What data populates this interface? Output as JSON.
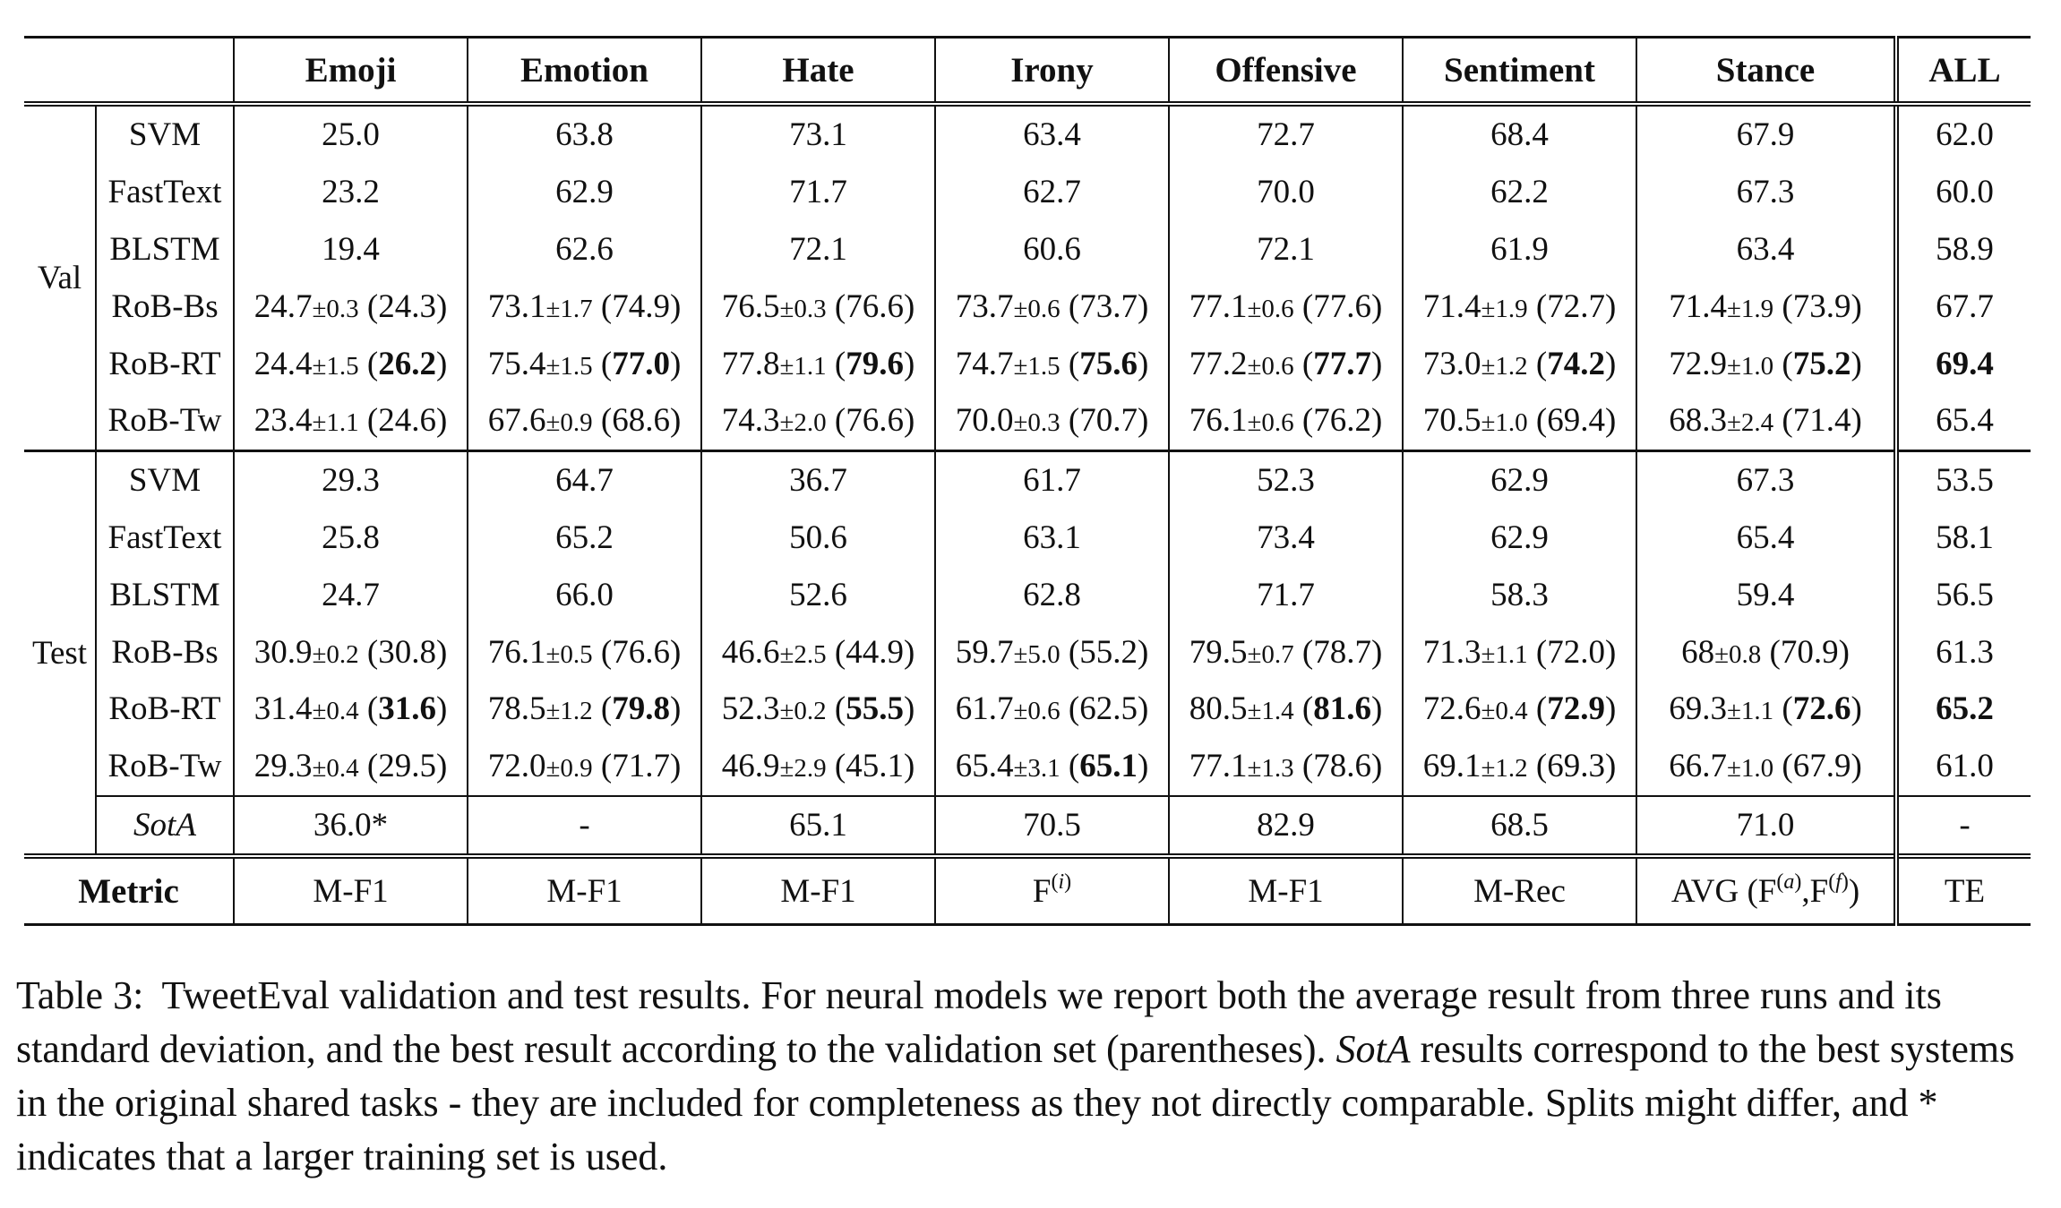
{
  "columns": [
    "Emoji",
    "Emotion",
    "Hate",
    "Irony",
    "Offensive",
    "Sentiment",
    "Stance",
    "ALL"
  ],
  "groups": [
    {
      "label": "Val",
      "rows": [
        {
          "model": "SVM",
          "cells": [
            {
              "v": "25.0"
            },
            {
              "v": "63.8"
            },
            {
              "v": "73.1"
            },
            {
              "v": "63.4"
            },
            {
              "v": "72.7"
            },
            {
              "v": "68.4"
            },
            {
              "v": "67.9"
            },
            {
              "v": "62.0"
            }
          ]
        },
        {
          "model": "FastText",
          "cells": [
            {
              "v": "23.2"
            },
            {
              "v": "62.9"
            },
            {
              "v": "71.7"
            },
            {
              "v": "62.7"
            },
            {
              "v": "70.0"
            },
            {
              "v": "62.2"
            },
            {
              "v": "67.3"
            },
            {
              "v": "60.0"
            }
          ]
        },
        {
          "model": "BLSTM",
          "cells": [
            {
              "v": "19.4"
            },
            {
              "v": "62.6"
            },
            {
              "v": "72.1"
            },
            {
              "v": "60.6"
            },
            {
              "v": "72.1"
            },
            {
              "v": "61.9"
            },
            {
              "v": "63.4"
            },
            {
              "v": "58.9"
            }
          ]
        },
        {
          "model": "RoB-Bs",
          "cells": [
            {
              "v": "24.7",
              "sd": "±0.3",
              "best": "(24.3)"
            },
            {
              "v": "73.1",
              "sd": "±1.7",
              "best": "(74.9)"
            },
            {
              "v": "76.5",
              "sd": "±0.3",
              "best": "(76.6)"
            },
            {
              "v": "73.7",
              "sd": "±0.6",
              "best": "(73.7)"
            },
            {
              "v": "77.1",
              "sd": "±0.6",
              "best": "(77.6)"
            },
            {
              "v": "71.4",
              "sd": "±1.9",
              "best": "(72.7)"
            },
            {
              "v": "71.4",
              "sd": "±1.9",
              "best": "(73.9)"
            },
            {
              "v": "67.7"
            }
          ]
        },
        {
          "model": "RoB-RT",
          "cells": [
            {
              "v": "24.4",
              "sd": "±1.5",
              "best": "26.2",
              "bold": true
            },
            {
              "v": "75.4",
              "sd": "±1.5",
              "best": "77.0",
              "bold": true
            },
            {
              "v": "77.8",
              "sd": "±1.1",
              "best": "79.6",
              "bold": true
            },
            {
              "v": "74.7",
              "sd": "±1.5",
              "best": "75.6",
              "bold": true
            },
            {
              "v": "77.2",
              "sd": "±0.6",
              "best": "77.7",
              "bold": true
            },
            {
              "v": "73.0",
              "sd": "±1.2",
              "best": "74.2",
              "bold": true
            },
            {
              "v": "72.9",
              "sd": "±1.0",
              "best": "75.2",
              "bold": true
            },
            {
              "v": "69.4",
              "allbold": true
            }
          ]
        },
        {
          "model": "RoB-Tw",
          "cells": [
            {
              "v": "23.4",
              "sd": "±1.1",
              "best": "(24.6)"
            },
            {
              "v": "67.6",
              "sd": "±0.9",
              "best": "(68.6)"
            },
            {
              "v": "74.3",
              "sd": "±2.0",
              "best": "(76.6)"
            },
            {
              "v": "70.0",
              "sd": "±0.3",
              "best": "(70.7)"
            },
            {
              "v": "76.1",
              "sd": "±0.6",
              "best": "(76.2)"
            },
            {
              "v": "70.5",
              "sd": "±1.0",
              "best": "(69.4)"
            },
            {
              "v": "68.3",
              "sd": "±2.4",
              "best": "(71.4)"
            },
            {
              "v": "65.4"
            }
          ]
        }
      ]
    },
    {
      "label": "Test",
      "rows": [
        {
          "model": "SVM",
          "cells": [
            {
              "v": "29.3"
            },
            {
              "v": "64.7"
            },
            {
              "v": "36.7"
            },
            {
              "v": "61.7"
            },
            {
              "v": "52.3"
            },
            {
              "v": "62.9"
            },
            {
              "v": "67.3"
            },
            {
              "v": "53.5"
            }
          ]
        },
        {
          "model": "FastText",
          "cells": [
            {
              "v": "25.8"
            },
            {
              "v": "65.2"
            },
            {
              "v": "50.6"
            },
            {
              "v": "63.1"
            },
            {
              "v": "73.4"
            },
            {
              "v": "62.9"
            },
            {
              "v": "65.4"
            },
            {
              "v": "58.1"
            }
          ]
        },
        {
          "model": "BLSTM",
          "cells": [
            {
              "v": "24.7"
            },
            {
              "v": "66.0"
            },
            {
              "v": "52.6"
            },
            {
              "v": "62.8"
            },
            {
              "v": "71.7"
            },
            {
              "v": "58.3"
            },
            {
              "v": "59.4"
            },
            {
              "v": "56.5"
            }
          ]
        },
        {
          "model": "RoB-Bs",
          "cells": [
            {
              "v": "30.9",
              "sd": "±0.2",
              "best": "(30.8)"
            },
            {
              "v": "76.1",
              "sd": "±0.5",
              "best": "(76.6)"
            },
            {
              "v": "46.6",
              "sd": "±2.5",
              "best": "(44.9)"
            },
            {
              "v": "59.7",
              "sd": "±5.0",
              "best": "(55.2)"
            },
            {
              "v": "79.5",
              "sd": "±0.7",
              "best": "(78.7)"
            },
            {
              "v": "71.3",
              "sd": "±1.1",
              "best": "(72.0)"
            },
            {
              "v": "68",
              "sd": "±0.8",
              "best": "(70.9)"
            },
            {
              "v": "61.3"
            }
          ]
        },
        {
          "model": "RoB-RT",
          "cells": [
            {
              "v": "31.4",
              "sd": "±0.4",
              "best": "31.6",
              "bold": true
            },
            {
              "v": "78.5",
              "sd": "±1.2",
              "best": "79.8",
              "bold": true
            },
            {
              "v": "52.3",
              "sd": "±0.2",
              "best": "55.5",
              "bold": true
            },
            {
              "v": "61.7",
              "sd": "±0.6",
              "best": "(62.5)"
            },
            {
              "v": "80.5",
              "sd": "±1.4",
              "best": "81.6",
              "bold": true
            },
            {
              "v": "72.6",
              "sd": "±0.4",
              "best": "72.9",
              "bold": true
            },
            {
              "v": "69.3",
              "sd": "±1.1",
              "best": "72.6",
              "bold": true
            },
            {
              "v": "65.2",
              "allbold": true
            }
          ]
        },
        {
          "model": "RoB-Tw",
          "cells": [
            {
              "v": "29.3",
              "sd": "±0.4",
              "best": "(29.5)"
            },
            {
              "v": "72.0",
              "sd": "±0.9",
              "best": "(71.7)"
            },
            {
              "v": "46.9",
              "sd": "±2.9",
              "best": "(45.1)"
            },
            {
              "v": "65.4",
              "sd": "±3.1",
              "best": "65.1",
              "bold": true
            },
            {
              "v": "77.1",
              "sd": "±1.3",
              "best": "(78.6)"
            },
            {
              "v": "69.1",
              "sd": "±1.2",
              "best": "(69.3)"
            },
            {
              "v": "66.7",
              "sd": "±1.0",
              "best": "(67.9)"
            },
            {
              "v": "61.0"
            }
          ]
        }
      ]
    }
  ],
  "sota": {
    "label": "SotA",
    "cells": [
      "36.0*",
      "-",
      "65.1",
      "70.5",
      "82.9",
      "68.5",
      "71.0",
      "-"
    ]
  },
  "metric": {
    "label": "Metric",
    "cells": [
      "M-F1",
      "M-F1",
      "M-F1",
      "F(i)",
      "M-F1",
      "M-Rec",
      "AVG (F(a),F(f))",
      "TE"
    ]
  },
  "caption": {
    "label": "Table 3:",
    "text_before": "TweetEval validation and test results. For neural models we report both the average result from three runs and its standard deviation, and the best result according to the validation set (parentheses).",
    "italic": "SotA",
    "text_after": "results correspond to the best systems in the original shared tasks - they are included for completeness as they not directly comparable. Splits might differ, and * indicates that a larger training set is used."
  }
}
